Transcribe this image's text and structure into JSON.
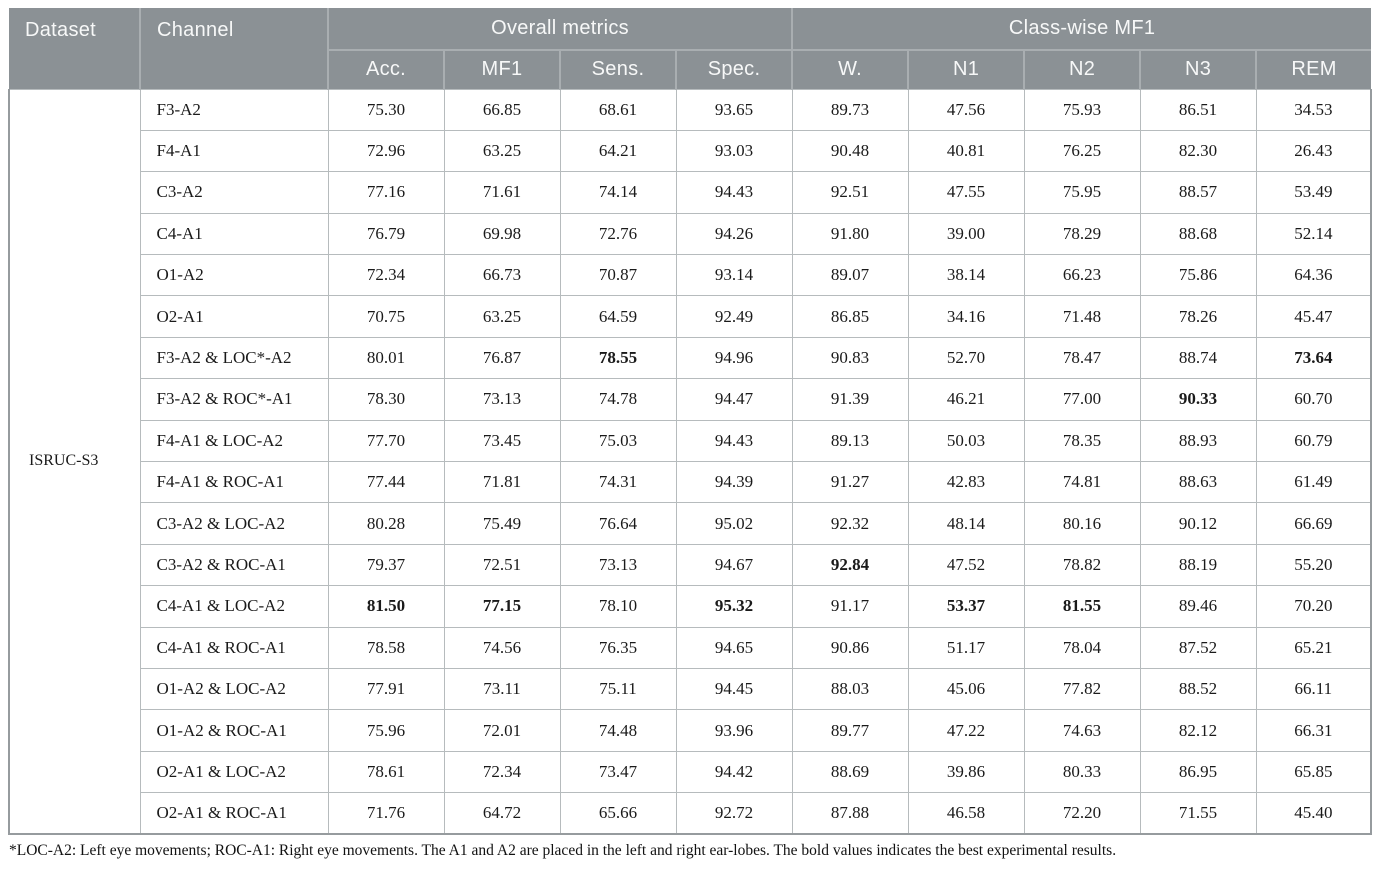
{
  "table": {
    "header": {
      "dataset": "Dataset",
      "channel": "Channel",
      "group_overall": "Overall metrics",
      "group_classwise": "Class-wise MF1",
      "sub": [
        "Acc.",
        "MF1",
        "Sens.",
        "Spec.",
        "W.",
        "N1",
        "N2",
        "N3",
        "REM"
      ]
    },
    "dataset_value": "ISRUC-S3",
    "rows": [
      {
        "channel": "F3-A2",
        "values": [
          "75.30",
          "66.85",
          "68.61",
          "93.65",
          "89.73",
          "47.56",
          "75.93",
          "86.51",
          "34.53"
        ],
        "bold": []
      },
      {
        "channel": "F4-A1",
        "values": [
          "72.96",
          "63.25",
          "64.21",
          "93.03",
          "90.48",
          "40.81",
          "76.25",
          "82.30",
          "26.43"
        ],
        "bold": []
      },
      {
        "channel": "C3-A2",
        "values": [
          "77.16",
          "71.61",
          "74.14",
          "94.43",
          "92.51",
          "47.55",
          "75.95",
          "88.57",
          "53.49"
        ],
        "bold": []
      },
      {
        "channel": "C4-A1",
        "values": [
          "76.79",
          "69.98",
          "72.76",
          "94.26",
          "91.80",
          "39.00",
          "78.29",
          "88.68",
          "52.14"
        ],
        "bold": []
      },
      {
        "channel": "O1-A2",
        "values": [
          "72.34",
          "66.73",
          "70.87",
          "93.14",
          "89.07",
          "38.14",
          "66.23",
          "75.86",
          "64.36"
        ],
        "bold": []
      },
      {
        "channel": "O2-A1",
        "values": [
          "70.75",
          "63.25",
          "64.59",
          "92.49",
          "86.85",
          "34.16",
          "71.48",
          "78.26",
          "45.47"
        ],
        "bold": []
      },
      {
        "channel": "F3-A2 & LOC*-A2",
        "values": [
          "80.01",
          "76.87",
          "78.55",
          "94.96",
          "90.83",
          "52.70",
          "78.47",
          "88.74",
          "73.64"
        ],
        "bold": [
          2,
          8
        ]
      },
      {
        "channel": "F3-A2 & ROC*-A1",
        "values": [
          "78.30",
          "73.13",
          "74.78",
          "94.47",
          "91.39",
          "46.21",
          "77.00",
          "90.33",
          "60.70"
        ],
        "bold": [
          7
        ]
      },
      {
        "channel": "F4-A1 & LOC-A2",
        "values": [
          "77.70",
          "73.45",
          "75.03",
          "94.43",
          "89.13",
          "50.03",
          "78.35",
          "88.93",
          "60.79"
        ],
        "bold": []
      },
      {
        "channel": "F4-A1 & ROC-A1",
        "values": [
          "77.44",
          "71.81",
          "74.31",
          "94.39",
          "91.27",
          "42.83",
          "74.81",
          "88.63",
          "61.49"
        ],
        "bold": []
      },
      {
        "channel": "C3-A2 & LOC-A2",
        "values": [
          "80.28",
          "75.49",
          "76.64",
          "95.02",
          "92.32",
          "48.14",
          "80.16",
          "90.12",
          "66.69"
        ],
        "bold": []
      },
      {
        "channel": "C3-A2 & ROC-A1",
        "values": [
          "79.37",
          "72.51",
          "73.13",
          "94.67",
          "92.84",
          "47.52",
          "78.82",
          "88.19",
          "55.20"
        ],
        "bold": [
          4
        ]
      },
      {
        "channel": "C4-A1 & LOC-A2",
        "values": [
          "81.50",
          "77.15",
          "78.10",
          "95.32",
          "91.17",
          "53.37",
          "81.55",
          "89.46",
          "70.20"
        ],
        "bold": [
          0,
          1,
          3,
          5,
          6
        ]
      },
      {
        "channel": "C4-A1 & ROC-A1",
        "values": [
          "78.58",
          "74.56",
          "76.35",
          "94.65",
          "90.86",
          "51.17",
          "78.04",
          "87.52",
          "65.21"
        ],
        "bold": []
      },
      {
        "channel": "O1-A2 & LOC-A2",
        "values": [
          "77.91",
          "73.11",
          "75.11",
          "94.45",
          "88.03",
          "45.06",
          "77.82",
          "88.52",
          "66.11"
        ],
        "bold": []
      },
      {
        "channel": "O1-A2 & ROC-A1",
        "values": [
          "75.96",
          "72.01",
          "74.48",
          "93.96",
          "89.77",
          "47.22",
          "74.63",
          "82.12",
          "66.31"
        ],
        "bold": []
      },
      {
        "channel": "O2-A1 & LOC-A2",
        "values": [
          "78.61",
          "72.34",
          "73.47",
          "94.42",
          "88.69",
          "39.86",
          "80.33",
          "86.95",
          "65.85"
        ],
        "bold": []
      },
      {
        "channel": "O2-A1 & ROC-A1",
        "values": [
          "71.76",
          "64.72",
          "65.66",
          "92.72",
          "87.88",
          "46.58",
          "72.20",
          "71.55",
          "45.40"
        ],
        "bold": []
      }
    ],
    "footnote": "*LOC-A2: Left eye movements; ROC-A1: Right eye movements. The A1 and A2 are placed in the left and right ear-lobes. The bold values indicates the best experimental results.",
    "colors": {
      "header_bg": "#8b9195",
      "header_text": "#f7f8f8",
      "header_separator": "#a9aeb1",
      "body_border": "#b6bbbd",
      "outer_border": "#969b9e",
      "body_text": "#1a1a1a"
    }
  }
}
